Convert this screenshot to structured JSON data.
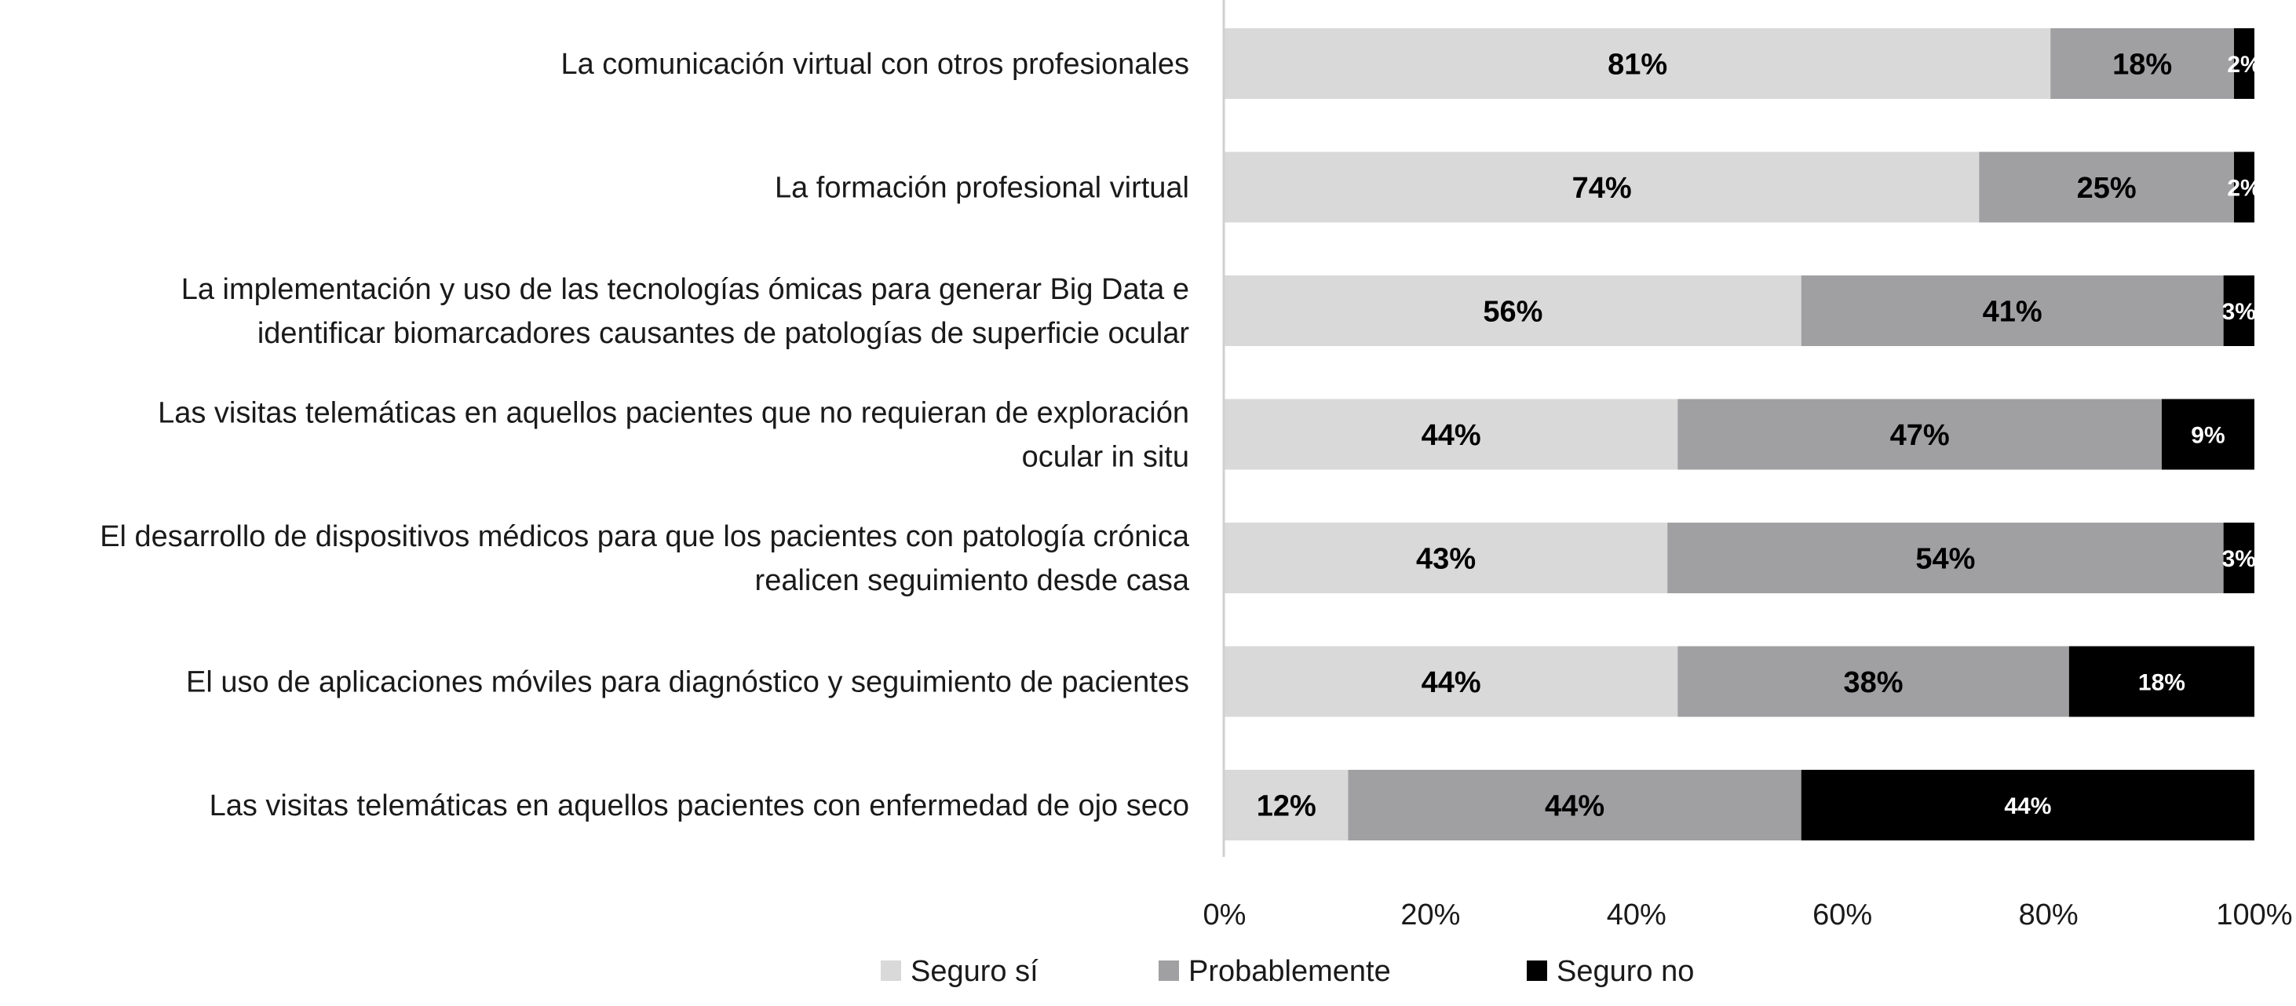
{
  "chart_data": {
    "type": "bar",
    "orientation": "horizontal",
    "stacked": "percent",
    "categories": [
      [
        "La comunicación virtual con otros profesionales"
      ],
      [
        "La formación profesional virtual"
      ],
      [
        "La implementación y uso de las tecnologías ómicas para generar Big Data e",
        "identificar biomarcadores causantes de patologías de superficie ocular"
      ],
      [
        "Las visitas telemáticas en aquellos pacientes que no requieran de exploración",
        "ocular in situ"
      ],
      [
        "El desarrollo de dispositivos médicos para que los pacientes con patología crónica",
        "realicen seguimiento desde casa"
      ],
      [
        "El uso de aplicaciones móviles para diagnóstico y seguimiento de pacientes"
      ],
      [
        "Las visitas telemáticas en aquellos pacientes con enfermedad de ojo seco"
      ]
    ],
    "series": [
      {
        "name": "Seguro sí",
        "color": "#d9d9d9",
        "label_color": "#000000",
        "values": [
          81,
          74,
          56,
          44,
          43,
          44,
          12
        ],
        "labels": [
          "81%",
          "74%",
          "56%",
          "44%",
          "43%",
          "44%",
          "12%"
        ]
      },
      {
        "name": "Probablemente",
        "color": "#a0a0a2",
        "label_color": "#000000",
        "values": [
          18,
          25,
          41,
          47,
          54,
          38,
          44
        ],
        "labels": [
          "18%",
          "25%",
          "41%",
          "47%",
          "54%",
          "38%",
          "44%"
        ]
      },
      {
        "name": "Seguro no",
        "color": "#000000",
        "label_color": "#ffffff",
        "values": [
          2,
          2,
          3,
          9,
          3,
          18,
          44
        ],
        "labels": [
          "2%",
          "2%",
          "3%",
          "9%",
          "3%",
          "18%",
          "44%"
        ]
      }
    ],
    "x_ticks": [
      "0%",
      "20%",
      "40%",
      "60%",
      "80%",
      "100%"
    ],
    "xlim": [
      0,
      100
    ],
    "grid": false,
    "legend_position": "bottom"
  }
}
